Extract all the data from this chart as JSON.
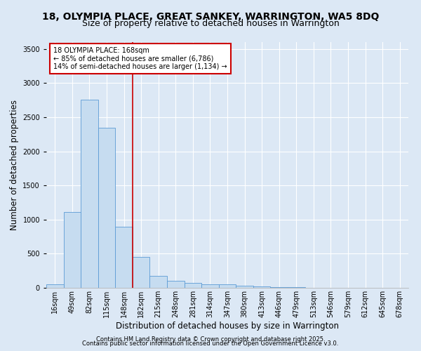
{
  "title1": "18, OLYMPIA PLACE, GREAT SANKEY, WARRINGTON, WA5 8DQ",
  "title2": "Size of property relative to detached houses in Warrington",
  "xlabel": "Distribution of detached houses by size in Warrington",
  "ylabel": "Number of detached properties",
  "bar_labels": [
    "16sqm",
    "49sqm",
    "82sqm",
    "115sqm",
    "148sqm",
    "182sqm",
    "215sqm",
    "248sqm",
    "281sqm",
    "314sqm",
    "347sqm",
    "380sqm",
    "413sqm",
    "446sqm",
    "479sqm",
    "513sqm",
    "546sqm",
    "579sqm",
    "612sqm",
    "645sqm",
    "678sqm"
  ],
  "bar_values": [
    50,
    1110,
    2760,
    2350,
    900,
    450,
    175,
    100,
    75,
    50,
    50,
    30,
    20,
    10,
    8,
    5,
    5,
    3,
    3,
    2,
    2
  ],
  "bar_color": "#c6dcf0",
  "bar_edgecolor": "#5b9bd5",
  "ylim": [
    0,
    3600
  ],
  "yticks": [
    0,
    500,
    1000,
    1500,
    2000,
    2500,
    3000,
    3500
  ],
  "vline_x": 4.5,
  "vline_color": "#cc0000",
  "annotation_text": "18 OLYMPIA PLACE: 168sqm\n← 85% of detached houses are smaller (6,786)\n14% of semi-detached houses are larger (1,134) →",
  "bg_color": "#dce8f5",
  "plot_bg_color": "#dce8f5",
  "footer1": "Contains HM Land Registry data © Crown copyright and database right 2025.",
  "footer2": "Contains public sector information licensed under the Open Government Licence v3.0.",
  "title_fontsize": 10,
  "subtitle_fontsize": 9,
  "tick_fontsize": 7,
  "ylabel_fontsize": 8.5,
  "xlabel_fontsize": 8.5,
  "footer_fontsize": 6.0
}
